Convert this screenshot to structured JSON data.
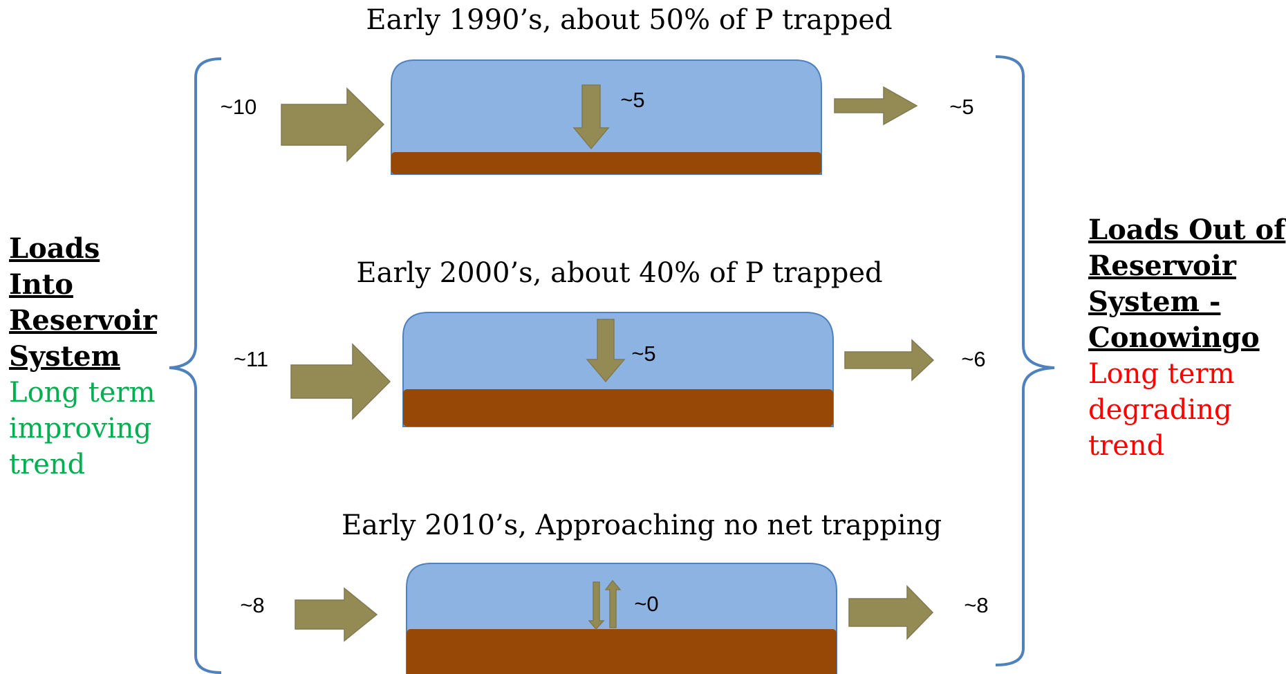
{
  "colors": {
    "water": "#8db3e2",
    "sediment": "#974806",
    "arrow": "#948a54",
    "bracket": "#4f81bd",
    "improving": "#00b050",
    "degrading": "#ff0000"
  },
  "panels": [
    {
      "title": "Early 1990’s,  about 50% of P trapped",
      "load_in": "~10",
      "trapped": "~5",
      "load_out": "~5"
    },
    {
      "title": "Early 2000’s,  about 40% of P trapped",
      "load_in": "~11",
      "trapped": "~5",
      "load_out": "~6"
    },
    {
      "title": "Early 2010’s, Approaching no net trapping",
      "load_in": "~8",
      "trapped": "~0",
      "load_out": "~8"
    }
  ],
  "left_label": {
    "heading": "Loads\nInto\nReservoir\nSystem",
    "trend": "Long term\nimproving\ntrend"
  },
  "right_label": {
    "heading": "Loads Out of\nReservoir\nSystem -\nConowingo",
    "trend": "Long term\ndegrading\ntrend"
  }
}
